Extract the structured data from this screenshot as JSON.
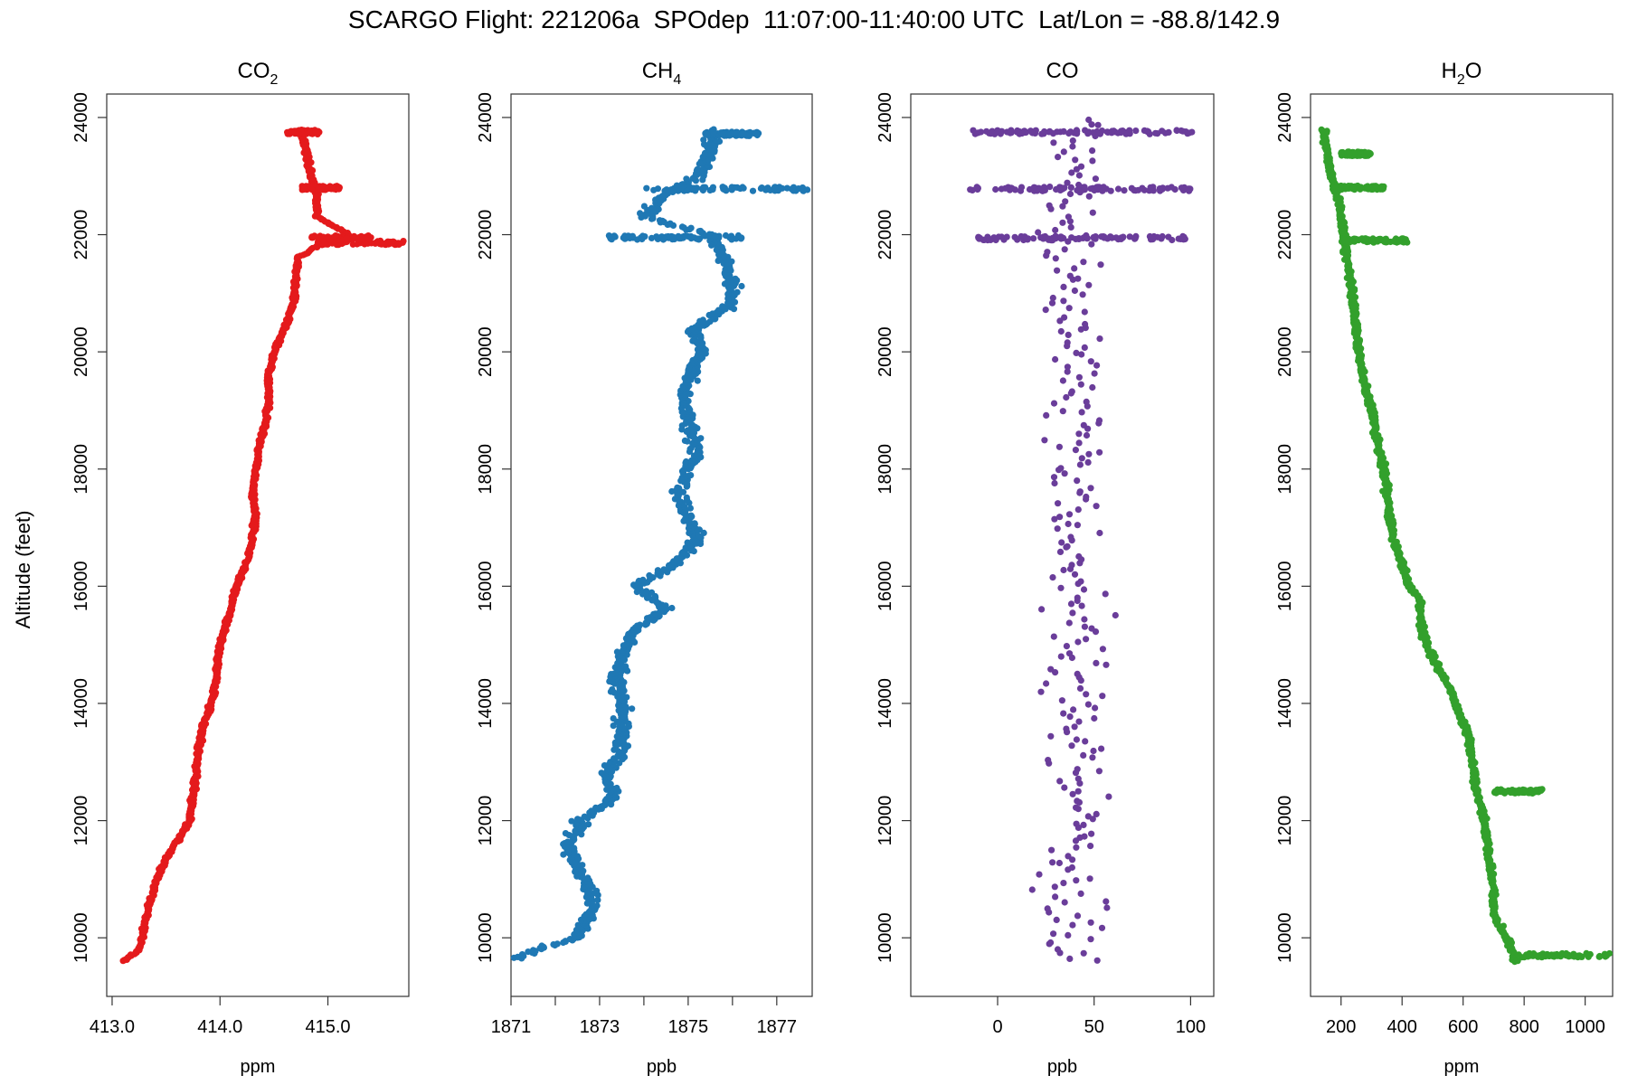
{
  "figure": {
    "title": "SCARGO Flight: 221206a  SPOdep  11:07:00-11:40:00 UTC  Lat/Lon = -88.8/142.9",
    "ylabel": "Altitude (feet)"
  },
  "colors": {
    "co2": "#e41a1c",
    "ch4": "#1f78b4",
    "co": "#6a3d9a",
    "h2o": "#33a02c"
  },
  "chart_data": [
    {
      "type": "scatter",
      "title_main": "CO",
      "title_sub": "2",
      "xlabel": "ppm",
      "ylabel": "Altitude (feet)",
      "xlim": [
        412.95,
        415.75
      ],
      "ylim": [
        9000,
        24400
      ],
      "xticks": [
        413.0,
        414.0,
        415.0
      ],
      "xtick_labels": [
        "413.0",
        "414.0",
        "415.0"
      ],
      "yticks": [
        10000,
        12000,
        14000,
        16000,
        18000,
        20000,
        22000,
        24000
      ],
      "grid": false,
      "series": [
        {
          "color": "#e41a1c",
          "profile": [
            [
              9600,
              413.1
            ],
            [
              9800,
              413.25
            ],
            [
              10000,
              413.28
            ],
            [
              10400,
              413.32
            ],
            [
              10800,
              413.38
            ],
            [
              11200,
              413.46
            ],
            [
              11600,
              413.58
            ],
            [
              12000,
              413.72
            ],
            [
              12400,
              413.75
            ],
            [
              12800,
              413.78
            ],
            [
              13200,
              413.8
            ],
            [
              13600,
              413.84
            ],
            [
              14000,
              413.92
            ],
            [
              14400,
              413.96
            ],
            [
              14800,
              413.98
            ],
            [
              15200,
              414.03
            ],
            [
              15600,
              414.1
            ],
            [
              16000,
              414.15
            ],
            [
              16400,
              414.25
            ],
            [
              16800,
              414.3
            ],
            [
              17200,
              414.33
            ],
            [
              17600,
              414.3
            ],
            [
              18000,
              414.33
            ],
            [
              18400,
              414.36
            ],
            [
              18800,
              414.42
            ],
            [
              19200,
              414.45
            ],
            [
              19600,
              414.45
            ],
            [
              20000,
              414.5
            ],
            [
              20400,
              414.6
            ],
            [
              20800,
              414.68
            ],
            [
              21200,
              414.7
            ],
            [
              21600,
              414.72
            ],
            [
              21800,
              414.9
            ],
            [
              22000,
              415.2
            ],
            [
              22300,
              414.9
            ],
            [
              22700,
              414.9
            ],
            [
              23000,
              414.85
            ],
            [
              23400,
              414.8
            ],
            [
              23800,
              414.75
            ]
          ],
          "jitter": 0.03,
          "bursts": [
            {
              "y": 21860,
              "x0": 414.9,
              "x1": 415.7
            },
            {
              "y": 21950,
              "x0": 414.85,
              "x1": 415.4
            },
            {
              "y": 22800,
              "x0": 414.75,
              "x1": 415.12
            },
            {
              "y": 23750,
              "x0": 414.62,
              "x1": 414.92
            }
          ]
        }
      ]
    },
    {
      "type": "scatter",
      "title_main": "CH",
      "title_sub": "4",
      "xlabel": "ppb",
      "ylabel": "Altitude (feet)",
      "xlim": [
        1871.0,
        1877.8
      ],
      "xticks": [
        1871,
        1873,
        1875,
        1877
      ],
      "xtick_labels": [
        "1871",
        "1873",
        "1875",
        "1877"
      ],
      "minor_xticks": [
        1872,
        1874,
        1876
      ],
      "ylim": [
        9000,
        24400
      ],
      "yticks": [
        10000,
        12000,
        14000,
        16000,
        18000,
        20000,
        22000,
        24000
      ],
      "grid": false,
      "series": [
        {
          "color": "#1f78b4",
          "profile": [
            [
              9650,
              1871.1
            ],
            [
              9800,
              1871.6
            ],
            [
              10000,
              1872.5
            ],
            [
              10400,
              1872.8
            ],
            [
              10800,
              1872.8
            ],
            [
              11200,
              1872.5
            ],
            [
              11600,
              1872.3
            ],
            [
              12000,
              1872.6
            ],
            [
              12400,
              1873.3
            ],
            [
              12800,
              1873.2
            ],
            [
              13200,
              1873.5
            ],
            [
              13600,
              1873.5
            ],
            [
              14000,
              1873.5
            ],
            [
              14400,
              1873.4
            ],
            [
              14800,
              1873.5
            ],
            [
              15200,
              1873.7
            ],
            [
              15600,
              1874.5
            ],
            [
              16000,
              1873.8
            ],
            [
              16400,
              1874.8
            ],
            [
              16800,
              1875.2
            ],
            [
              17200,
              1875.0
            ],
            [
              17600,
              1874.8
            ],
            [
              18000,
              1875.0
            ],
            [
              18400,
              1875.2
            ],
            [
              18800,
              1875.0
            ],
            [
              19200,
              1874.9
            ],
            [
              19600,
              1875.0
            ],
            [
              20000,
              1875.3
            ],
            [
              20400,
              1875.1
            ],
            [
              20800,
              1876.0
            ],
            [
              21200,
              1876.0
            ],
            [
              21600,
              1875.8
            ],
            [
              22000,
              1875.5
            ],
            [
              22300,
              1874.0
            ],
            [
              22700,
              1874.5
            ],
            [
              23000,
              1875.3
            ],
            [
              23400,
              1875.5
            ],
            [
              23800,
              1875.5
            ]
          ],
          "jitter": 0.25,
          "bursts": [
            {
              "y": 21950,
              "x0": 1873.2,
              "x1": 1876.3
            },
            {
              "y": 22780,
              "x0": 1874.0,
              "x1": 1877.7
            },
            {
              "y": 23720,
              "x0": 1875.4,
              "x1": 1876.6
            }
          ]
        }
      ]
    },
    {
      "type": "scatter",
      "title_main": "CO",
      "title_sub": "",
      "xlabel": "ppb",
      "ylabel": "Altitude (feet)",
      "xlim": [
        -45,
        112
      ],
      "xticks": [
        0,
        50,
        100
      ],
      "xtick_labels": [
        "0",
        "50",
        "100"
      ],
      "ylim": [
        9000,
        24400
      ],
      "yticks": [
        10000,
        12000,
        14000,
        16000,
        18000,
        20000,
        22000,
        24000
      ],
      "grid": false,
      "series": [
        {
          "color": "#6a3d9a",
          "profile": [
            [
              9600,
              40
            ],
            [
              24000,
              40
            ]
          ],
          "jitter": 16,
          "bursts": [
            {
              "y": 21940,
              "x0": -10,
              "x1": 100
            },
            {
              "y": 22780,
              "x0": -15,
              "x1": 100
            },
            {
              "y": 23750,
              "x0": -15,
              "x1": 105
            }
          ]
        }
      ]
    },
    {
      "type": "scatter",
      "title_main": "H",
      "title_sub": "2",
      "title_tail": "O",
      "xlabel": "ppm",
      "ylabel": "Altitude (feet)",
      "xlim": [
        100,
        1090
      ],
      "xticks": [
        200,
        400,
        600,
        800,
        1000
      ],
      "xtick_labels": [
        "200",
        "400",
        "600",
        "800",
        "1000"
      ],
      "ylim": [
        9000,
        24400
      ],
      "yticks": [
        10000,
        12000,
        14000,
        16000,
        18000,
        20000,
        22000,
        24000
      ],
      "grid": false,
      "series": [
        {
          "color": "#33a02c",
          "profile": [
            [
              9600,
              770
            ],
            [
              9800,
              760
            ],
            [
              10000,
              740
            ],
            [
              10400,
              700
            ],
            [
              10800,
              700
            ],
            [
              11200,
              690
            ],
            [
              11600,
              680
            ],
            [
              12000,
              670
            ],
            [
              12200,
              660
            ],
            [
              12600,
              640
            ],
            [
              13000,
              630
            ],
            [
              13400,
              620
            ],
            [
              13800,
              590
            ],
            [
              14200,
              560
            ],
            [
              14600,
              520
            ],
            [
              15000,
              480
            ],
            [
              15400,
              460
            ],
            [
              15800,
              460
            ],
            [
              16000,
              420
            ],
            [
              16400,
              400
            ],
            [
              16800,
              370
            ],
            [
              17200,
              360
            ],
            [
              17600,
              350
            ],
            [
              18000,
              340
            ],
            [
              18400,
              320
            ],
            [
              18800,
              310
            ],
            [
              19200,
              290
            ],
            [
              19600,
              270
            ],
            [
              20000,
              260
            ],
            [
              20400,
              250
            ],
            [
              20800,
              240
            ],
            [
              21200,
              230
            ],
            [
              21600,
              220
            ],
            [
              22000,
              210
            ],
            [
              22400,
              200
            ],
            [
              22800,
              180
            ],
            [
              23200,
              160
            ],
            [
              23600,
              150
            ],
            [
              23800,
              140
            ]
          ],
          "jitter": 14,
          "bursts": [
            {
              "y": 21900,
              "x0": 200,
              "x1": 420
            },
            {
              "y": 22800,
              "x0": 170,
              "x1": 340
            },
            {
              "y": 23380,
              "x0": 200,
              "x1": 300
            },
            {
              "y": 12500,
              "x0": 700,
              "x1": 860
            },
            {
              "y": 9700,
              "x0": 780,
              "x1": 1080
            }
          ]
        }
      ]
    }
  ]
}
